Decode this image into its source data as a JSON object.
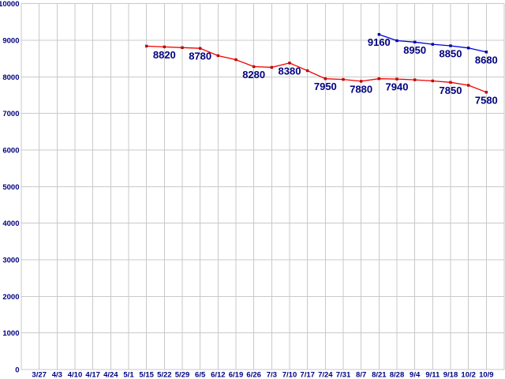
{
  "chart_data": {
    "type": "line",
    "title": "",
    "xlabel": "",
    "ylabel": "",
    "background_color": "#ffffff",
    "grid": true,
    "grid_color": "#c9c9c9",
    "axis_label_color": "#000080",
    "value_label_color": "#000080",
    "legend_position": "none",
    "ylim": [
      0,
      10000
    ],
    "ytick_step": 1000,
    "ytick_labels": [
      "0",
      "1000",
      "2000",
      "3000",
      "4000",
      "5000",
      "6000",
      "7000",
      "8000",
      "9000",
      "10000"
    ],
    "categories": [
      "3/27",
      "4/3",
      "4/10",
      "4/17",
      "4/24",
      "5/1",
      "5/15",
      "5/22",
      "5/29",
      "6/5",
      "6/12",
      "6/19",
      "6/26",
      "7/3",
      "7/10",
      "7/17",
      "7/24",
      "7/31",
      "8/7",
      "8/21",
      "8/28",
      "9/4",
      "9/11",
      "9/18",
      "10/2",
      "10/9"
    ],
    "series": [
      {
        "name": "red-series",
        "line_color": "#f00000",
        "marker_color": "#c00000",
        "points": [
          {
            "x": "5/15",
            "y": 8840
          },
          {
            "x": "5/22",
            "y": 8820,
            "label": "8820"
          },
          {
            "x": "5/29",
            "y": 8800
          },
          {
            "x": "6/5",
            "y": 8780,
            "label": "8780"
          },
          {
            "x": "6/12",
            "y": 8580
          },
          {
            "x": "6/19",
            "y": 8470
          },
          {
            "x": "6/26",
            "y": 8280,
            "label": "8280"
          },
          {
            "x": "7/3",
            "y": 8260
          },
          {
            "x": "7/10",
            "y": 8380,
            "label": "8380"
          },
          {
            "x": "7/17",
            "y": 8170
          },
          {
            "x": "7/24",
            "y": 7950,
            "label": "7950"
          },
          {
            "x": "7/31",
            "y": 7930
          },
          {
            "x": "8/7",
            "y": 7880,
            "label": "7880"
          },
          {
            "x": "8/21",
            "y": 7950
          },
          {
            "x": "8/28",
            "y": 7940,
            "label": "7940"
          },
          {
            "x": "9/4",
            "y": 7920
          },
          {
            "x": "9/11",
            "y": 7890
          },
          {
            "x": "9/18",
            "y": 7850,
            "label": "7850"
          },
          {
            "x": "10/2",
            "y": 7770
          },
          {
            "x": "10/9",
            "y": 7580,
            "label": "7580"
          }
        ]
      },
      {
        "name": "blue-series",
        "line_color": "#0000e0",
        "marker_color": "#0000a0",
        "points": [
          {
            "x": "8/21",
            "y": 9160,
            "label": "9160"
          },
          {
            "x": "8/28",
            "y": 8990
          },
          {
            "x": "9/4",
            "y": 8950,
            "label": "8950"
          },
          {
            "x": "9/11",
            "y": 8890
          },
          {
            "x": "9/18",
            "y": 8850,
            "label": "8850"
          },
          {
            "x": "10/2",
            "y": 8790
          },
          {
            "x": "10/9",
            "y": 8680,
            "label": "8680"
          }
        ]
      }
    ]
  }
}
